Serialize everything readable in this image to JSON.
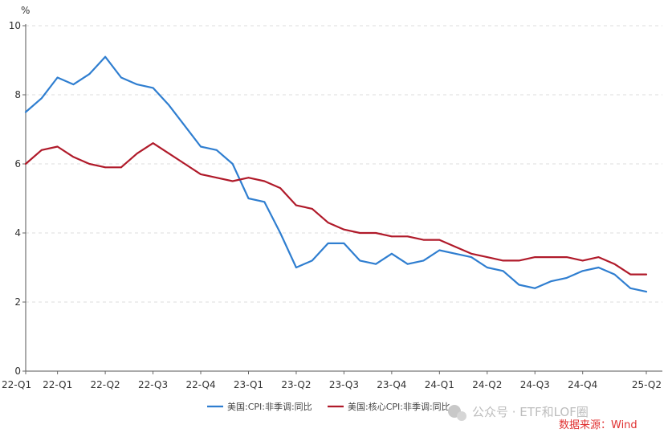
{
  "chart_data": {
    "type": "line",
    "ylabel": "%",
    "ylim": [
      0,
      10
    ],
    "y_ticks": [
      0,
      2,
      4,
      6,
      8,
      10
    ],
    "grid": "horizontal-dashed",
    "legend_position": "bottom",
    "x_tick_labels": [
      "22-Q1",
      "22-Q1",
      "22-Q2",
      "22-Q3",
      "22-Q4",
      "23-Q1",
      "23-Q2",
      "23-Q3",
      "23-Q4",
      "24-Q1",
      "24-Q2",
      "24-Q3",
      "24-Q4",
      "25-Q2"
    ],
    "x_tick_indices": [
      0,
      2,
      5,
      8,
      11,
      14,
      17,
      20,
      23,
      26,
      29,
      32,
      35,
      39
    ],
    "x_count": 40,
    "series": [
      {
        "name": "美国:CPI:非季调:同比",
        "color": "#2f7ed0",
        "values": [
          7.5,
          7.9,
          8.5,
          8.3,
          8.6,
          9.1,
          8.5,
          8.3,
          8.2,
          7.7,
          7.1,
          6.5,
          6.4,
          6.0,
          5.0,
          4.9,
          4.0,
          3.0,
          3.2,
          3.7,
          3.7,
          3.2,
          3.1,
          3.4,
          3.1,
          3.2,
          3.5,
          3.4,
          3.3,
          3.0,
          2.9,
          2.5,
          2.4,
          2.6,
          2.7,
          2.9,
          3.0,
          2.8,
          2.4,
          2.3
        ]
      },
      {
        "name": "美国:核心CPI:非季调:同比",
        "color": "#b01a2a",
        "values": [
          6.0,
          6.4,
          6.5,
          6.2,
          6.0,
          5.9,
          5.9,
          6.3,
          6.6,
          6.3,
          6.0,
          5.7,
          5.6,
          5.5,
          5.6,
          5.5,
          5.3,
          4.8,
          4.7,
          4.3,
          4.1,
          4.0,
          4.0,
          3.9,
          3.9,
          3.8,
          3.8,
          3.6,
          3.4,
          3.3,
          3.2,
          3.2,
          3.3,
          3.3,
          3.3,
          3.2,
          3.3,
          3.1,
          2.8,
          2.8
        ]
      }
    ]
  },
  "watermark": {
    "brand": "公众号 · ETF和LOF圈",
    "source": "数据来源：Wind"
  }
}
